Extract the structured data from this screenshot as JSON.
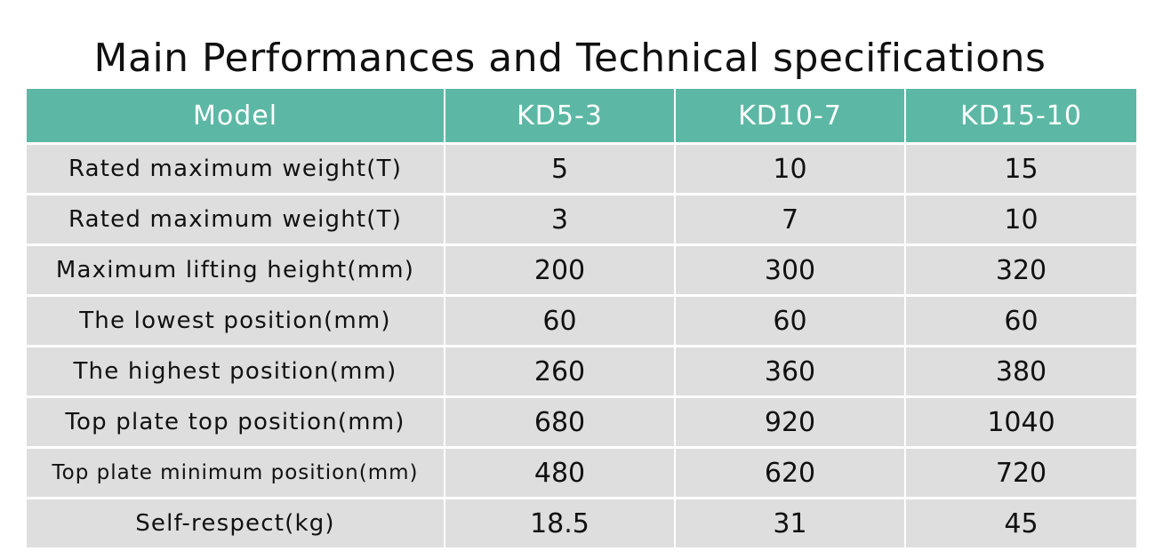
{
  "title": "Main Performances and Technical specifications",
  "header": {
    "label": "Model",
    "models": [
      "KD5-3",
      "KD10-7",
      "KD15-10"
    ]
  },
  "rows": [
    {
      "label": "Rated maximum weight(T)",
      "values": [
        "5",
        "10",
        "15"
      ]
    },
    {
      "label": "Rated maximum weight(T)",
      "values": [
        "3",
        "7",
        "10"
      ]
    },
    {
      "label": "Maximum lifting height(mm)",
      "values": [
        "200",
        "300",
        "320"
      ]
    },
    {
      "label": "The lowest position(mm)",
      "values": [
        "60",
        "60",
        "60"
      ]
    },
    {
      "label": "The highest position(mm)",
      "values": [
        "260",
        "360",
        "380"
      ]
    },
    {
      "label": "Top plate top position(mm)",
      "values": [
        "680",
        "920",
        "1040"
      ]
    },
    {
      "label": "Top plate minimum position(mm)",
      "values": [
        "480",
        "620",
        "720"
      ]
    },
    {
      "label": "Self-respect(kg)",
      "values": [
        "18.5",
        "31",
        "45"
      ]
    }
  ],
  "colors": {
    "header_bg": "#5cb8a4",
    "header_text": "#ffffff",
    "cell_bg": "#dedede",
    "grid_line": "#ffffff"
  }
}
